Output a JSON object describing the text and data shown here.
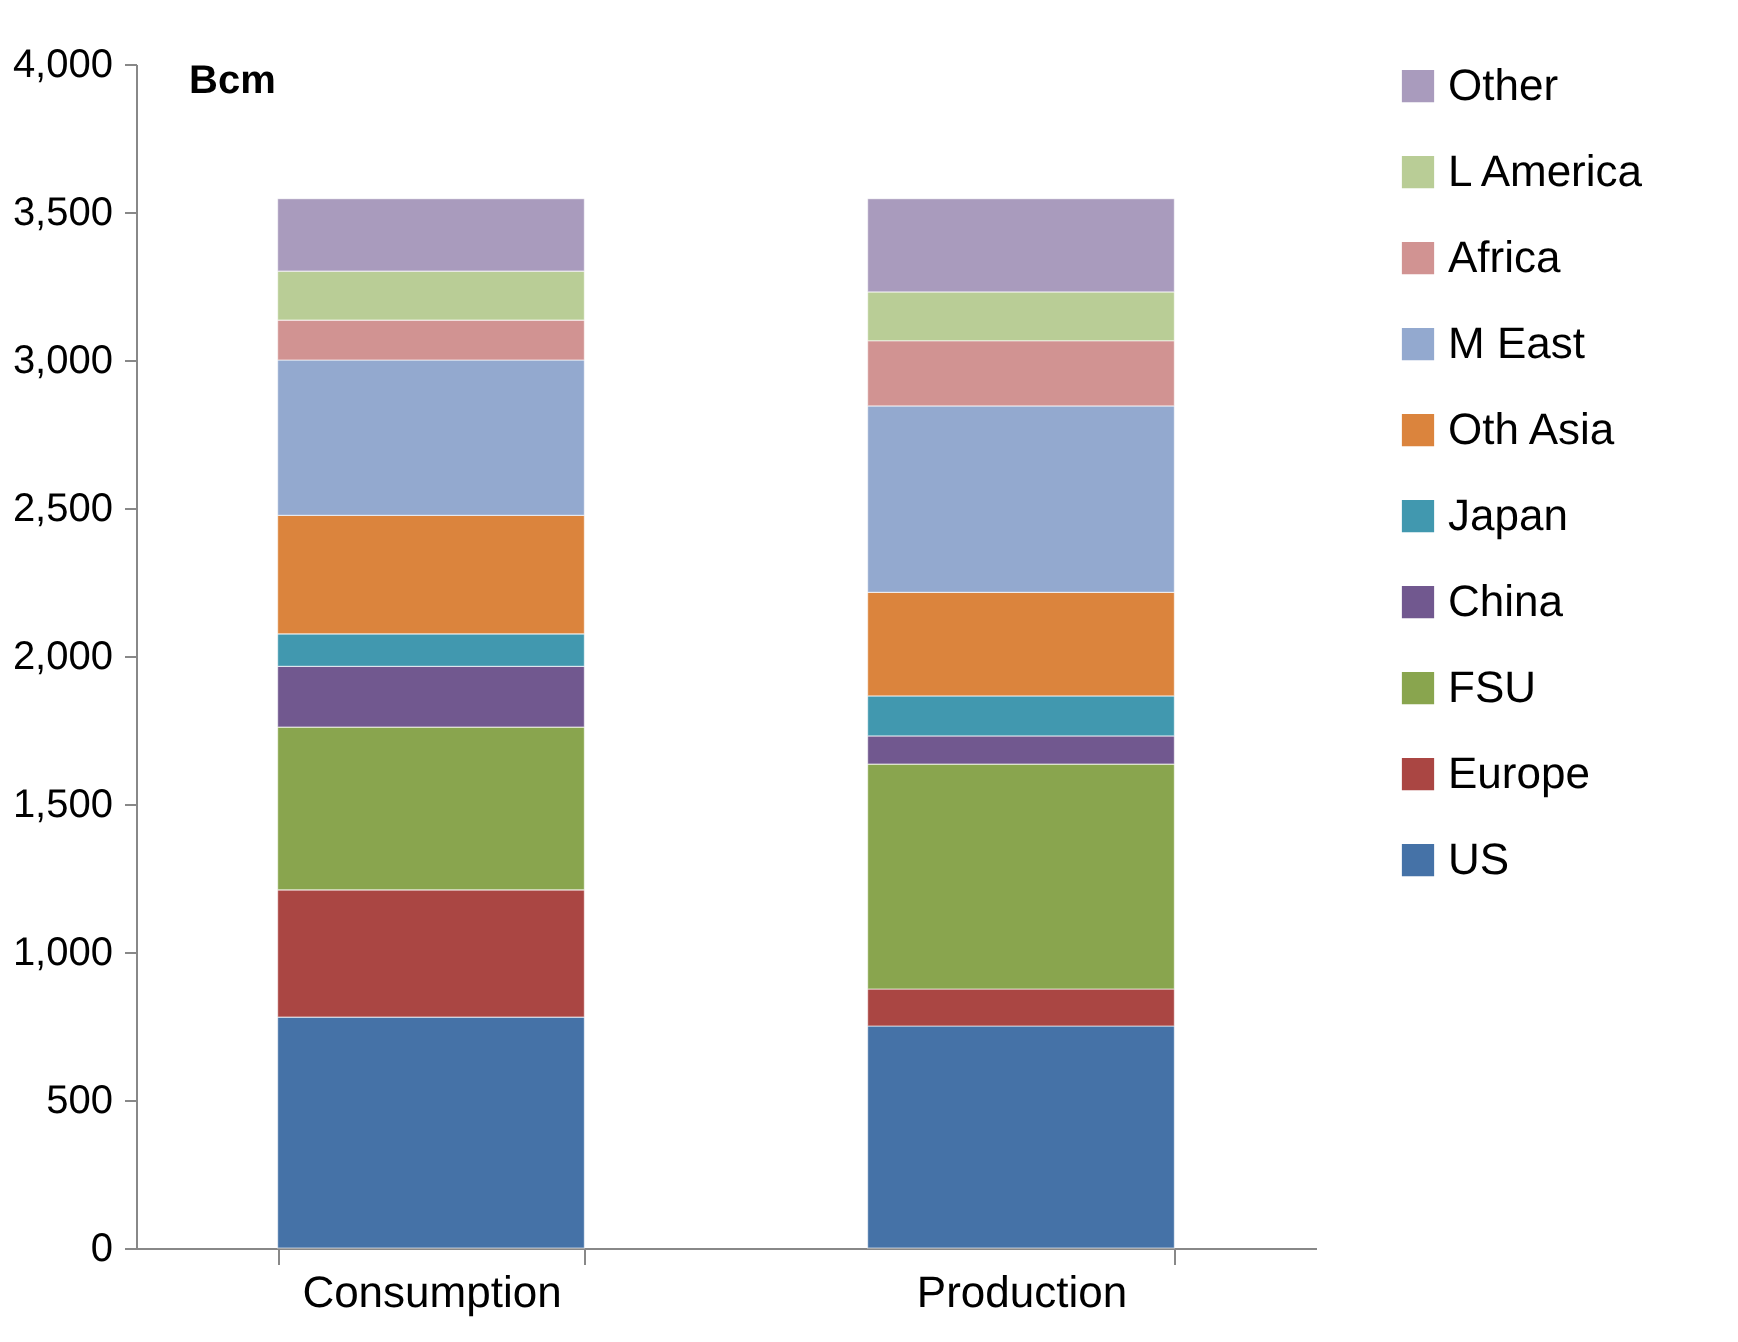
{
  "chart_data": {
    "type": "bar",
    "stacked": true,
    "ylabel": "Bcm",
    "categories": [
      "Consumption",
      "Production"
    ],
    "series": [
      {
        "name": "US",
        "color": "#4572a7",
        "values": [
          780,
          750
        ]
      },
      {
        "name": "Europe",
        "color": "#aa4643",
        "values": [
          430,
          125
        ]
      },
      {
        "name": "FSU",
        "color": "#89a54e",
        "values": [
          550,
          760
        ]
      },
      {
        "name": "China",
        "color": "#71588f",
        "values": [
          205,
          95
        ]
      },
      {
        "name": "Japan",
        "color": "#4198af",
        "values": [
          110,
          135
        ]
      },
      {
        "name": "Oth Asia",
        "color": "#db843d",
        "values": [
          400,
          350
        ]
      },
      {
        "name": "M East",
        "color": "#93a9cf",
        "values": [
          525,
          630
        ]
      },
      {
        "name": "Africa",
        "color": "#d19392",
        "values": [
          135,
          220
        ]
      },
      {
        "name": "L America",
        "color": "#b9cd96",
        "values": [
          165,
          165
        ]
      },
      {
        "name": "Other",
        "color": "#a99bbd",
        "values": [
          245,
          315
        ]
      }
    ],
    "ylim": [
      0,
      4000
    ],
    "yticks": [
      0,
      500,
      {
        "value": 1000,
        "label": "1,000"
      },
      {
        "value": 1500,
        "label": "1,500"
      },
      {
        "value": 2000,
        "label": "2,000"
      },
      {
        "value": 2500,
        "label": "2,500"
      },
      {
        "value": 3000,
        "label": "3,000"
      },
      {
        "value": 3500,
        "label": "3,500"
      },
      {
        "value": 4000,
        "label": "4,000"
      }
    ],
    "legend": "right"
  }
}
